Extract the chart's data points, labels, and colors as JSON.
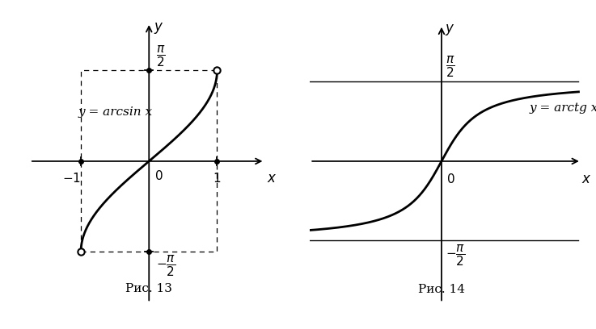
{
  "fig_width": 7.37,
  "fig_height": 4.08,
  "dpi": 100,
  "bg_color": "#ffffff",
  "curve_color": "#000000",
  "curve_lw": 2.0,
  "axis_color": "#000000",
  "axis_lw": 1.3,
  "dashed_color": "#000000",
  "dashed_lw": 0.9,
  "dot_size": 4,
  "open_circle_size": 5,
  "caption1": "Рис. 13",
  "caption2": "Рис. 14",
  "label_arcsin": "y = arcsin x",
  "label_arctg": "y = arctg x"
}
